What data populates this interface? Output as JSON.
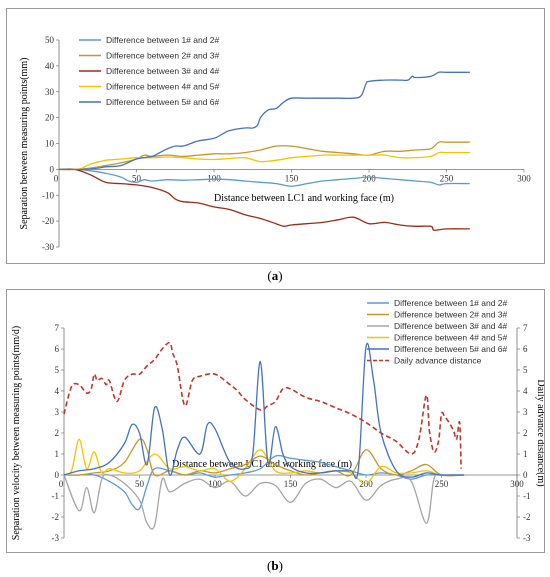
{
  "captions": {
    "a": "a",
    "b": "b"
  },
  "chart_data": [
    {
      "type": "line",
      "xlabel": "Distance between LC1 and working face (m)",
      "ylabel": "Separation between measuring points(mm)",
      "xlim": [
        0,
        300
      ],
      "ylim": [
        -30,
        50
      ],
      "xticks": [
        50,
        100,
        150,
        200,
        250,
        300
      ],
      "yticks": [
        -30,
        -20,
        -10,
        0,
        10,
        20,
        30,
        40,
        50
      ],
      "grid": false,
      "legend_position": "top-left",
      "series": [
        {
          "name": "Difference between 1# and 2#",
          "color": "#5b9bd5",
          "x": [
            0,
            10,
            20,
            30,
            40,
            45,
            50,
            55,
            60,
            70,
            80,
            90,
            100,
            110,
            120,
            130,
            140,
            150,
            160,
            170,
            180,
            190,
            200,
            210,
            220,
            230,
            240,
            245,
            250,
            265
          ],
          "y": [
            0,
            0,
            -0.5,
            -1.5,
            -3,
            -4.5,
            -5,
            -4,
            -4.5,
            -4,
            -4.2,
            -4,
            -3.8,
            -4,
            -4.5,
            -5,
            -5.5,
            -6.5,
            -5.5,
            -4.5,
            -4,
            -3.5,
            -3,
            -3.5,
            -4,
            -4.5,
            -5,
            -6,
            -5.5,
            -5.5
          ]
        },
        {
          "name": "Difference between 2# and 3#",
          "color": "#c9962c",
          "x": [
            0,
            10,
            20,
            30,
            40,
            50,
            55,
            60,
            70,
            80,
            90,
            100,
            110,
            120,
            130,
            140,
            150,
            160,
            170,
            180,
            190,
            200,
            210,
            220,
            230,
            240,
            245,
            250,
            265
          ],
          "y": [
            0,
            0,
            0.5,
            1.5,
            2.5,
            4,
            5.5,
            5,
            5.5,
            5,
            5.5,
            6,
            6,
            6.5,
            7.5,
            9,
            9,
            8,
            7,
            6.5,
            6,
            5.5,
            7,
            7,
            7.5,
            8,
            10.5,
            10.5,
            10.5
          ]
        },
        {
          "name": "Difference between 3# and 4#",
          "color": "#9e2a16",
          "x": [
            0,
            10,
            20,
            30,
            40,
            50,
            60,
            70,
            75,
            80,
            90,
            100,
            110,
            120,
            130,
            140,
            145,
            150,
            160,
            170,
            180,
            190,
            200,
            210,
            220,
            230,
            240,
            242,
            250,
            265
          ],
          "y": [
            0,
            0,
            -2,
            -5,
            -5.5,
            -6,
            -7,
            -9,
            -11.5,
            -12.5,
            -13,
            -14.5,
            -15.5,
            -17.5,
            -19,
            -21,
            -22,
            -21.5,
            -21,
            -20.5,
            -19.5,
            -18.5,
            -21,
            -20.5,
            -21.5,
            -22,
            -22,
            -23.5,
            -23,
            -23
          ]
        },
        {
          "name": "Difference between 4# and 5#",
          "color": "#f5c400",
          "x": [
            0,
            10,
            15,
            20,
            30,
            40,
            50,
            60,
            70,
            80,
            90,
            100,
            110,
            120,
            130,
            140,
            150,
            160,
            170,
            180,
            190,
            200,
            210,
            220,
            230,
            240,
            245,
            250,
            265
          ],
          "y": [
            0,
            0,
            0.5,
            2,
            3.5,
            4,
            4.5,
            4.5,
            4.8,
            4.5,
            4,
            3.8,
            4.2,
            4.5,
            3,
            3.5,
            4.5,
            5,
            5.5,
            5.5,
            5.5,
            5.5,
            5.5,
            4.5,
            4.5,
            5,
            6.5,
            6.5,
            6.5
          ]
        },
        {
          "name": "Difference between 5# and 6#",
          "color": "#4472c4",
          "x": [
            0,
            15,
            25,
            30,
            40,
            50,
            60,
            65,
            70,
            75,
            80,
            85,
            90,
            100,
            105,
            110,
            120,
            125,
            128,
            130,
            135,
            140,
            145,
            150,
            160,
            170,
            180,
            190,
            195,
            198,
            200,
            210,
            220,
            225,
            228,
            230,
            240,
            245,
            250,
            265
          ],
          "y": [
            0,
            0,
            0.5,
            1,
            1.5,
            4,
            5,
            6.5,
            8,
            9,
            9,
            10,
            11,
            12,
            13.5,
            15,
            16,
            16,
            17,
            20,
            23,
            23.5,
            26,
            27.5,
            27.5,
            27.5,
            27.5,
            27.5,
            28.5,
            33,
            34,
            34.5,
            34.5,
            34.5,
            36,
            35.5,
            36,
            37.5,
            37.5,
            37.5
          ]
        }
      ]
    },
    {
      "type": "line",
      "xlabel": "Distance between LC1 and working face (m)",
      "ylabel": "Separation velocity between measuring points(mm/d)",
      "y2label": "Daily advance distance(m)",
      "xlim": [
        0,
        300
      ],
      "ylim": [
        -3,
        7
      ],
      "y2lim": [
        -3,
        7
      ],
      "xticks": [
        50,
        100,
        150,
        200,
        250,
        300
      ],
      "yticks": [
        -3,
        -2,
        -1,
        0,
        1,
        2,
        3,
        4,
        5,
        6,
        7
      ],
      "grid": false,
      "legend_position": "top-right",
      "series": [
        {
          "name": "Difference between 1# and 2#",
          "color": "#5b9bd5",
          "x": [
            0,
            10,
            20,
            30,
            40,
            45,
            50,
            55,
            60,
            70,
            80,
            90,
            100,
            110,
            120,
            130,
            140,
            150,
            160,
            170,
            180,
            190,
            200,
            210,
            220,
            230,
            240,
            250,
            265
          ],
          "y": [
            0,
            0,
            0,
            -0.3,
            -0.8,
            -1.4,
            -1.6,
            -0.5,
            0.3,
            0.2,
            0,
            0.1,
            -0.1,
            0,
            0.1,
            0.3,
            0.9,
            0.8,
            0.7,
            0.6,
            0.4,
            0.2,
            0,
            0.1,
            0,
            -0.2,
            0,
            0,
            0
          ]
        },
        {
          "name": "Difference between 2# and 3#",
          "color": "#c9962c",
          "x": [
            0,
            10,
            20,
            30,
            40,
            50,
            55,
            60,
            70,
            80,
            90,
            100,
            110,
            120,
            130,
            140,
            150,
            160,
            170,
            180,
            190,
            200,
            210,
            220,
            230,
            240,
            250,
            265
          ],
          "y": [
            0,
            0,
            0.1,
            0.2,
            0.6,
            1.7,
            1.2,
            0,
            0.2,
            0,
            0.2,
            0.1,
            0.3,
            0.5,
            0.9,
            0.5,
            0.2,
            0,
            0.1,
            0.2,
            0,
            1.2,
            0.3,
            0,
            0.2,
            0.5,
            0,
            0
          ]
        },
        {
          "name": "Difference between 3# and 4#",
          "color": "#a5a5a5",
          "x": [
            0,
            10,
            15,
            20,
            25,
            30,
            40,
            50,
            55,
            60,
            65,
            70,
            80,
            90,
            100,
            110,
            120,
            130,
            140,
            150,
            160,
            170,
            180,
            190,
            200,
            210,
            220,
            230,
            240,
            245,
            250,
            265
          ],
          "y": [
            0,
            -1.7,
            -0.6,
            -1.8,
            -0.2,
            0,
            -0.4,
            -1.2,
            -2.3,
            -2.4,
            -0.2,
            -0.8,
            -0.4,
            -0.2,
            -0.6,
            -0.3,
            -1,
            -0.4,
            -0.5,
            -1.3,
            -0.4,
            -0.2,
            -0.6,
            -0.3,
            -1.2,
            -0.5,
            -0.2,
            -0.3,
            -2.3,
            -0.2,
            0,
            0
          ]
        },
        {
          "name": "Difference between 4# and 5#",
          "color": "#f5c400",
          "x": [
            0,
            5,
            10,
            15,
            20,
            25,
            30,
            40,
            50,
            60,
            70,
            80,
            90,
            100,
            110,
            120,
            130,
            140,
            150,
            160,
            170,
            180,
            190,
            200,
            210,
            220,
            230,
            240,
            250,
            265
          ],
          "y": [
            0,
            0.2,
            1.7,
            0.3,
            1.1,
            0.1,
            0.3,
            0.1,
            0.2,
            1.0,
            0.3,
            0.4,
            0.2,
            0.3,
            -0.3,
            0.3,
            1.2,
            0.2,
            0.1,
            0.2,
            0.1,
            0.2,
            0.1,
            -0.4,
            0.4,
            0.1,
            0.1,
            0.2,
            0,
            0
          ]
        },
        {
          "name": "Difference between 5# and 6#",
          "color": "#4472c4",
          "x": [
            0,
            10,
            20,
            30,
            40,
            45,
            50,
            55,
            60,
            65,
            70,
            75,
            80,
            90,
            95,
            100,
            110,
            120,
            125,
            130,
            135,
            140,
            145,
            150,
            160,
            170,
            180,
            190,
            195,
            200,
            205,
            210,
            220,
            230,
            240,
            250,
            265
          ],
          "y": [
            0,
            0.2,
            0.3,
            0.6,
            1.5,
            2.4,
            2.0,
            0.5,
            3.2,
            2.2,
            0,
            1.2,
            1.8,
            1.0,
            2.4,
            2.2,
            0.6,
            0.3,
            1.0,
            5.4,
            0.6,
            2.3,
            1.0,
            0.4,
            0.1,
            0.1,
            0.2,
            0.2,
            0.3,
            6.1,
            4.5,
            2.0,
            0.2,
            -0.1,
            0.1,
            0,
            0
          ]
        },
        {
          "name": "Daily advance distance",
          "color": "#c0362c",
          "dashed": true,
          "axis": "right",
          "x": [
            0,
            5,
            10,
            15,
            18,
            20,
            22,
            25,
            28,
            30,
            35,
            40,
            45,
            50,
            55,
            60,
            65,
            70,
            72,
            75,
            80,
            85,
            90,
            100,
            110,
            115,
            120,
            130,
            135,
            140,
            145,
            150,
            160,
            170,
            180,
            190,
            200,
            210,
            220,
            230,
            235,
            240,
            242,
            245,
            248,
            250,
            252,
            255,
            258,
            260,
            262,
            263
          ],
          "y": [
            2.9,
            4.2,
            4.3,
            3.9,
            4.1,
            4.8,
            4.5,
            4.6,
            4.3,
            4.5,
            3.5,
            4.5,
            4.8,
            4.8,
            5.2,
            5.5,
            6.0,
            6.3,
            5.8,
            5.2,
            3.3,
            4.5,
            4.7,
            4.8,
            4.3,
            4.0,
            3.6,
            3.1,
            3.3,
            3.5,
            4.1,
            4.1,
            3.7,
            3.5,
            3.2,
            2.9,
            2.5,
            2.0,
            1.6,
            1.0,
            1.7,
            3.8,
            2.1,
            1.1,
            1.6,
            2.9,
            2.8,
            2.5,
            2.1,
            1.7,
            2.5,
            0.3
          ]
        }
      ]
    }
  ]
}
